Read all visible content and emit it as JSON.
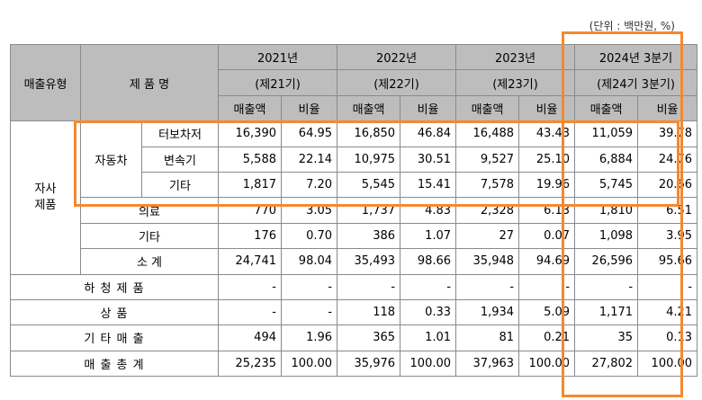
{
  "unit_note": "(단위 : 백만원, %)",
  "colors": {
    "header_bg": "#bdbdbd",
    "border": "#8a8a8a",
    "highlight": "#f5892f"
  },
  "header": {
    "sales_type": "매출유형",
    "product_name": "제 품 명",
    "periods": [
      {
        "year": "2021년",
        "term": "(제21기)"
      },
      {
        "year": "2022년",
        "term": "(제22기)"
      },
      {
        "year": "2023년",
        "term": "(제23기)"
      },
      {
        "year": "2024년 3분기",
        "term": "(제24기 3분기)"
      }
    ],
    "sales_label": "매출액",
    "ratio_label": "비율"
  },
  "groups": {
    "own_products": "자사\n제품",
    "automotive": "자동차"
  },
  "rows": [
    {
      "label": "터보차저",
      "values": [
        "16,390",
        "64.95",
        "16,850",
        "46.84",
        "16,488",
        "43.43",
        "11,059",
        "39.78"
      ]
    },
    {
      "label": "변속기",
      "values": [
        "5,588",
        "22.14",
        "10,975",
        "30.51",
        "9,527",
        "25.10",
        "6,884",
        "24.76"
      ]
    },
    {
      "label": "기타",
      "values": [
        "1,817",
        "7.20",
        "5,545",
        "15.41",
        "7,578",
        "19.96",
        "5,745",
        "20.66"
      ]
    },
    {
      "label": "의료",
      "values": [
        "770",
        "3.05",
        "1,737",
        "4.83",
        "2,328",
        "6.13",
        "1,810",
        "6.51"
      ]
    },
    {
      "label": "기타",
      "values": [
        "176",
        "0.70",
        "386",
        "1.07",
        "27",
        "0.07",
        "1,098",
        "3.95"
      ]
    },
    {
      "label": "소 계",
      "values": [
        "24,741",
        "98.04",
        "35,493",
        "98.66",
        "35,948",
        "94.69",
        "26,596",
        "95.66"
      ]
    },
    {
      "label": "하 청 제 품",
      "values": [
        "-",
        "-",
        "-",
        "-",
        "-",
        "-",
        "-",
        "-"
      ]
    },
    {
      "label": "상 품",
      "values": [
        "-",
        "-",
        "118",
        "0.33",
        "1,934",
        "5.09",
        "1,171",
        "4.21"
      ]
    },
    {
      "label": "기 타 매 출",
      "values": [
        "494",
        "1.96",
        "365",
        "1.01",
        "81",
        "0.21",
        "35",
        "0.13"
      ]
    },
    {
      "label": "매 출 총 계",
      "values": [
        "25,235",
        "100.00",
        "35,976",
        "100.00",
        "37,963",
        "100.00",
        "27,802",
        "100.00"
      ]
    }
  ]
}
